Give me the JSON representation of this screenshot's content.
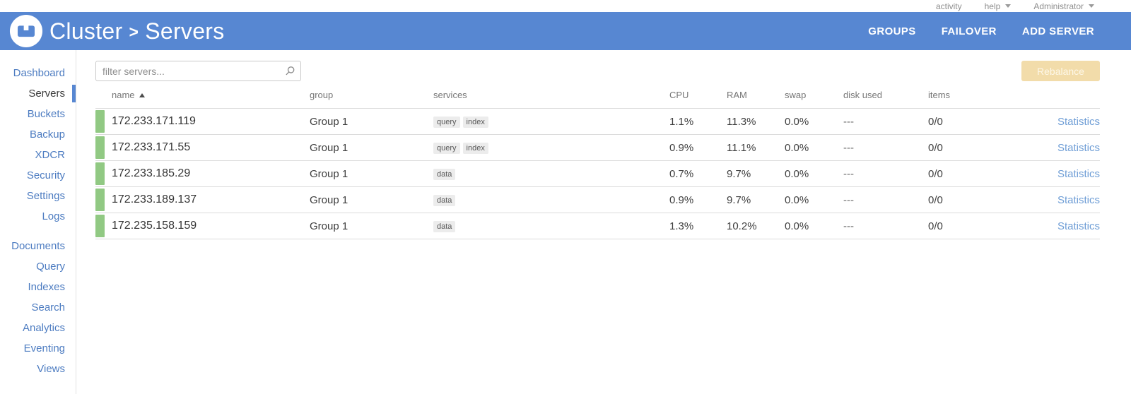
{
  "colors": {
    "header_blue": "#5787d2",
    "sidebar_link_blue": "#4d7cc1",
    "healthy_green": "#91c983",
    "rebalance_disabled_bg": "#f2dcaa",
    "statistics_link_blue": "#6f9ed6"
  },
  "topbar": {
    "items": [
      {
        "label": "activity",
        "has_caret": false
      },
      {
        "label": "help",
        "has_caret": true
      },
      {
        "label": "Administrator",
        "has_caret": true
      }
    ]
  },
  "header": {
    "breadcrumb": {
      "root": "Cluster",
      "separator": ">",
      "current": "Servers"
    },
    "actions": [
      {
        "label": "GROUPS"
      },
      {
        "label": "FAILOVER"
      },
      {
        "label": "ADD SERVER"
      }
    ]
  },
  "sidebar": {
    "groups": [
      {
        "items": [
          {
            "label": "Dashboard",
            "active": false
          },
          {
            "label": "Servers",
            "active": true
          },
          {
            "label": "Buckets",
            "active": false
          },
          {
            "label": "Backup",
            "active": false
          },
          {
            "label": "XDCR",
            "active": false
          },
          {
            "label": "Security",
            "active": false
          },
          {
            "label": "Settings",
            "active": false
          },
          {
            "label": "Logs",
            "active": false
          }
        ]
      },
      {
        "items": [
          {
            "label": "Documents",
            "active": false
          },
          {
            "label": "Query",
            "active": false
          },
          {
            "label": "Indexes",
            "active": false
          },
          {
            "label": "Search",
            "active": false
          },
          {
            "label": "Analytics",
            "active": false
          },
          {
            "label": "Eventing",
            "active": false
          },
          {
            "label": "Views",
            "active": false
          }
        ]
      }
    ]
  },
  "toolbar": {
    "filter_placeholder": "filter servers...",
    "rebalance_label": "Rebalance"
  },
  "table": {
    "columns": [
      {
        "key": "name",
        "label": "name",
        "sorted": "asc"
      },
      {
        "key": "group",
        "label": "group"
      },
      {
        "key": "services",
        "label": "services"
      },
      {
        "key": "cpu",
        "label": "CPU"
      },
      {
        "key": "ram",
        "label": "RAM"
      },
      {
        "key": "swap",
        "label": "swap"
      },
      {
        "key": "disk_used",
        "label": "disk used"
      },
      {
        "key": "items",
        "label": "items"
      },
      {
        "key": "link",
        "label": ""
      }
    ],
    "rows": [
      {
        "name": "172.233.171.119",
        "group": "Group 1",
        "services": [
          "query",
          "index"
        ],
        "cpu": "1.1%",
        "ram": "11.3%",
        "swap": "0.0%",
        "disk_used": "---",
        "items": "0/0",
        "link": "Statistics",
        "status": "healthy"
      },
      {
        "name": "172.233.171.55",
        "group": "Group 1",
        "services": [
          "query",
          "index"
        ],
        "cpu": "0.9%",
        "ram": "11.1%",
        "swap": "0.0%",
        "disk_used": "---",
        "items": "0/0",
        "link": "Statistics",
        "status": "healthy"
      },
      {
        "name": "172.233.185.29",
        "group": "Group 1",
        "services": [
          "data"
        ],
        "cpu": "0.7%",
        "ram": "9.7%",
        "swap": "0.0%",
        "disk_used": "---",
        "items": "0/0",
        "link": "Statistics",
        "status": "healthy"
      },
      {
        "name": "172.233.189.137",
        "group": "Group 1",
        "services": [
          "data"
        ],
        "cpu": "0.9%",
        "ram": "9.7%",
        "swap": "0.0%",
        "disk_used": "---",
        "items": "0/0",
        "link": "Statistics",
        "status": "healthy"
      },
      {
        "name": "172.235.158.159",
        "group": "Group 1",
        "services": [
          "data"
        ],
        "cpu": "1.3%",
        "ram": "10.2%",
        "swap": "0.0%",
        "disk_used": "---",
        "items": "0/0",
        "link": "Statistics",
        "status": "healthy"
      }
    ]
  }
}
